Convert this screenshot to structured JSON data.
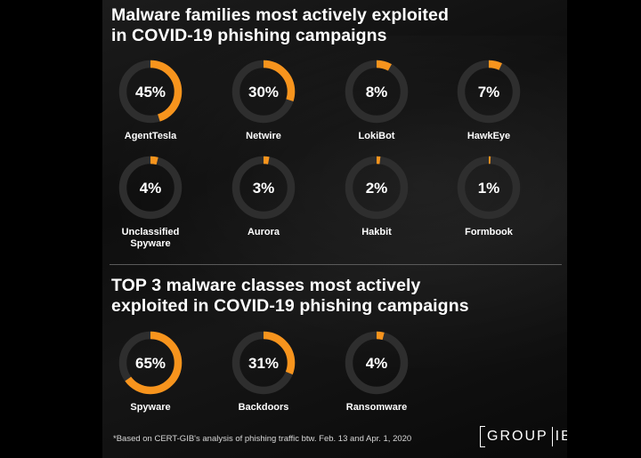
{
  "titles": {
    "families_line1": "Malware families most actively exploited",
    "families_line2": "in COVID-19 phishing campaigns",
    "classes_line1": "TOP 3 malware classes most actively",
    "classes_line2": "exploited in COVID-19 phishing campaigns"
  },
  "colors": {
    "accent": "#f7941d",
    "track": "#2e2e2e",
    "text": "#ffffff",
    "background": "#111111"
  },
  "chart_data": [
    {
      "type": "donut",
      "title": "Malware families most actively exploited in COVID-19 phishing campaigns",
      "unit": "%",
      "items": [
        {
          "label": "AgentTesla",
          "value": 45
        },
        {
          "label": "Netwire",
          "value": 30
        },
        {
          "label": "LokiBot",
          "value": 8
        },
        {
          "label": "HawkEye",
          "value": 7
        },
        {
          "label": "Unclassified Spyware",
          "value": 4
        },
        {
          "label": "Aurora",
          "value": 3
        },
        {
          "label": "Hakbit",
          "value": 2
        },
        {
          "label": "Formbook",
          "value": 1
        }
      ]
    },
    {
      "type": "donut",
      "title": "TOP 3 malware classes most actively exploited in COVID-19 phishing campaigns",
      "unit": "%",
      "items": [
        {
          "label": "Spyware",
          "value": 65
        },
        {
          "label": "Backdoors",
          "value": 31
        },
        {
          "label": "Ransomware",
          "value": 4
        }
      ]
    }
  ],
  "footnote": "*Based on CERT-GIB's analysis of phishing traffic btw. Feb. 13 and Apr. 1, 2020",
  "logo": {
    "left": "GROUP",
    "right": "IB"
  }
}
